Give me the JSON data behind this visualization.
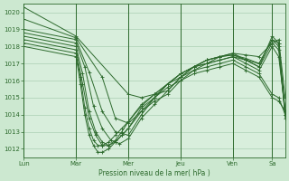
{
  "background_color": "#cce8d0",
  "plot_bg_color": "#d8eedc",
  "grid_color": "#a0c8a8",
  "line_color": "#2d6a2d",
  "xlabel": "Pression niveau de la mer( hPa )",
  "ylim": [
    1011.5,
    1020.5
  ],
  "yticks": [
    1012,
    1013,
    1014,
    1015,
    1016,
    1017,
    1018,
    1019,
    1020
  ],
  "day_hours": [
    0,
    24,
    48,
    72,
    96,
    114
  ],
  "day_labels": [
    "Lun",
    "Mar",
    "Mer",
    "Jeu",
    "Ven",
    "Sa"
  ],
  "xlim_hours": 120,
  "series": [
    {
      "points": [
        [
          0,
          1020.3
        ],
        [
          24,
          1018.6
        ],
        [
          48,
          1015.2
        ],
        [
          54,
          1015.0
        ],
        [
          60,
          1015.2
        ],
        [
          66,
          1015.4
        ],
        [
          72,
          1016.2
        ],
        [
          78,
          1016.8
        ],
        [
          84,
          1017.2
        ],
        [
          90,
          1017.4
        ],
        [
          96,
          1017.6
        ],
        [
          102,
          1017.5
        ],
        [
          108,
          1017.4
        ],
        [
          114,
          1018.2
        ],
        [
          117,
          1018.4
        ],
        [
          120,
          1015.0
        ]
      ]
    },
    {
      "points": [
        [
          0,
          1019.6
        ],
        [
          24,
          1018.5
        ],
        [
          36,
          1016.2
        ],
        [
          42,
          1013.8
        ],
        [
          48,
          1013.5
        ],
        [
          54,
          1014.2
        ],
        [
          60,
          1014.8
        ],
        [
          66,
          1015.2
        ],
        [
          72,
          1016.0
        ],
        [
          78,
          1016.6
        ],
        [
          84,
          1017.0
        ],
        [
          90,
          1017.2
        ],
        [
          96,
          1017.4
        ],
        [
          102,
          1017.2
        ],
        [
          108,
          1017.0
        ],
        [
          114,
          1018.4
        ],
        [
          117,
          1018.2
        ],
        [
          120,
          1014.2
        ]
      ]
    },
    {
      "points": [
        [
          0,
          1019.0
        ],
        [
          24,
          1018.4
        ],
        [
          30,
          1016.5
        ],
        [
          36,
          1014.2
        ],
        [
          42,
          1013.0
        ],
        [
          48,
          1012.8
        ],
        [
          54,
          1014.0
        ],
        [
          60,
          1015.0
        ],
        [
          66,
          1015.8
        ],
        [
          72,
          1016.4
        ],
        [
          78,
          1016.8
        ],
        [
          84,
          1017.2
        ],
        [
          90,
          1017.4
        ],
        [
          96,
          1017.5
        ],
        [
          102,
          1017.2
        ],
        [
          108,
          1016.8
        ],
        [
          114,
          1018.6
        ],
        [
          117,
          1018.2
        ],
        [
          120,
          1014.0
        ]
      ]
    },
    {
      "points": [
        [
          0,
          1018.8
        ],
        [
          24,
          1018.2
        ],
        [
          28,
          1016.8
        ],
        [
          32,
          1014.5
        ],
        [
          36,
          1013.2
        ],
        [
          40,
          1012.5
        ],
        [
          44,
          1012.3
        ],
        [
          48,
          1012.6
        ],
        [
          54,
          1013.8
        ],
        [
          60,
          1014.6
        ],
        [
          66,
          1015.4
        ],
        [
          72,
          1016.2
        ],
        [
          78,
          1016.8
        ],
        [
          84,
          1017.2
        ],
        [
          90,
          1017.4
        ],
        [
          96,
          1017.5
        ],
        [
          102,
          1017.3
        ],
        [
          108,
          1017.0
        ],
        [
          114,
          1018.4
        ],
        [
          117,
          1018.0
        ],
        [
          120,
          1013.8
        ]
      ]
    },
    {
      "points": [
        [
          0,
          1018.6
        ],
        [
          24,
          1018.0
        ],
        [
          27,
          1016.4
        ],
        [
          30,
          1014.2
        ],
        [
          33,
          1013.0
        ],
        [
          36,
          1012.4
        ],
        [
          39,
          1012.2
        ],
        [
          42,
          1012.4
        ],
        [
          45,
          1012.8
        ],
        [
          48,
          1013.2
        ],
        [
          54,
          1014.2
        ],
        [
          60,
          1015.0
        ],
        [
          66,
          1015.8
        ],
        [
          72,
          1016.4
        ],
        [
          78,
          1016.8
        ],
        [
          84,
          1017.0
        ],
        [
          90,
          1017.4
        ],
        [
          96,
          1017.6
        ],
        [
          102,
          1017.2
        ],
        [
          108,
          1016.8
        ],
        [
          114,
          1018.2
        ],
        [
          117,
          1017.8
        ],
        [
          120,
          1014.0
        ]
      ]
    },
    {
      "points": [
        [
          0,
          1018.4
        ],
        [
          24,
          1017.8
        ],
        [
          27,
          1015.8
        ],
        [
          30,
          1013.8
        ],
        [
          33,
          1012.8
        ],
        [
          36,
          1012.2
        ],
        [
          39,
          1012.2
        ],
        [
          42,
          1012.5
        ],
        [
          45,
          1013.0
        ],
        [
          48,
          1013.6
        ],
        [
          54,
          1014.5
        ],
        [
          60,
          1015.2
        ],
        [
          66,
          1015.8
        ],
        [
          72,
          1016.4
        ],
        [
          78,
          1016.8
        ],
        [
          84,
          1017.0
        ],
        [
          90,
          1017.2
        ],
        [
          96,
          1017.4
        ],
        [
          102,
          1017.0
        ],
        [
          108,
          1016.6
        ],
        [
          114,
          1018.0
        ],
        [
          117,
          1017.4
        ],
        [
          120,
          1014.2
        ]
      ]
    },
    {
      "points": [
        [
          0,
          1018.2
        ],
        [
          24,
          1017.6
        ],
        [
          26,
          1016.2
        ],
        [
          28,
          1014.4
        ],
        [
          30,
          1013.2
        ],
        [
          32,
          1012.5
        ],
        [
          34,
          1012.2
        ],
        [
          36,
          1012.2
        ],
        [
          39,
          1012.4
        ],
        [
          42,
          1012.8
        ],
        [
          45,
          1013.2
        ],
        [
          48,
          1013.6
        ],
        [
          54,
          1014.6
        ],
        [
          60,
          1015.2
        ],
        [
          66,
          1015.8
        ],
        [
          72,
          1016.2
        ],
        [
          78,
          1016.6
        ],
        [
          84,
          1016.8
        ],
        [
          90,
          1017.0
        ],
        [
          96,
          1017.2
        ],
        [
          102,
          1016.8
        ],
        [
          108,
          1016.4
        ],
        [
          114,
          1015.2
        ],
        [
          117,
          1015.0
        ],
        [
          120,
          1014.0
        ]
      ]
    },
    {
      "points": [
        [
          0,
          1018.0
        ],
        [
          24,
          1017.4
        ],
        [
          26,
          1015.8
        ],
        [
          28,
          1014.0
        ],
        [
          30,
          1012.8
        ],
        [
          32,
          1012.2
        ],
        [
          34,
          1011.8
        ],
        [
          36,
          1011.8
        ],
        [
          39,
          1012.0
        ],
        [
          42,
          1012.4
        ],
        [
          45,
          1012.8
        ],
        [
          48,
          1013.2
        ],
        [
          54,
          1014.4
        ],
        [
          60,
          1015.0
        ],
        [
          66,
          1015.6
        ],
        [
          72,
          1016.0
        ],
        [
          78,
          1016.4
        ],
        [
          84,
          1016.6
        ],
        [
          90,
          1016.8
        ],
        [
          96,
          1017.0
        ],
        [
          102,
          1016.6
        ],
        [
          108,
          1016.2
        ],
        [
          114,
          1015.0
        ],
        [
          117,
          1014.8
        ],
        [
          120,
          1014.2
        ]
      ]
    }
  ]
}
